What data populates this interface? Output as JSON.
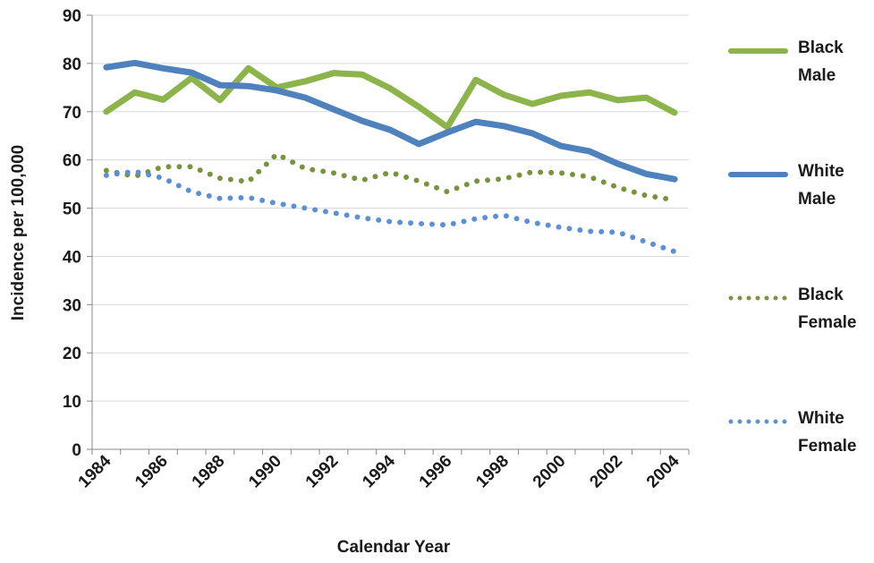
{
  "chart_data": {
    "type": "line",
    "x_label": "Calendar Year",
    "y_label": "Incidence per 100,000",
    "categories": [
      "1984",
      null,
      "1986",
      null,
      "1988",
      null,
      "1990",
      null,
      "1992",
      null,
      "1994",
      null,
      "1996",
      null,
      "1998",
      null,
      "2000",
      null,
      "2002",
      null,
      "2004"
    ],
    "series": [
      {
        "name": "Black Male",
        "color": "#8cb44a",
        "style": "solid",
        "values": [
          70,
          74,
          72.5,
          77,
          72.4,
          79,
          75,
          76.3,
          78,
          77.7,
          74.8,
          71,
          66.8,
          76.6,
          73.5,
          71.6,
          73.3,
          74,
          72.4,
          72.9,
          69.8
        ]
      },
      {
        "name": "White Male",
        "color": "#4f81bd",
        "style": "solid",
        "values": [
          79.2,
          80.1,
          79,
          78.1,
          75.5,
          75.3,
          74.4,
          72.9,
          70.5,
          68.1,
          66.2,
          63.3,
          65.7,
          67.9,
          67,
          65.5,
          62.9,
          61.8,
          59.2,
          57.1,
          56
        ]
      },
      {
        "name": "Black Female",
        "color": "#77933c",
        "style": "dotted",
        "values": [
          57.8,
          56.6,
          58.6,
          58.6,
          56.2,
          55.5,
          61.2,
          58.2,
          57.3,
          55.8,
          57.4,
          55.6,
          53.4,
          55.6,
          56.1,
          57.5,
          57.3,
          56.5,
          54.3,
          52.6,
          51.7
        ]
      },
      {
        "name": "White Female",
        "color": "#5b8fd6",
        "style": "dotted",
        "values": [
          56.8,
          57.6,
          56.2,
          53.4,
          52,
          52.2,
          51,
          50,
          49,
          48,
          47.2,
          46.8,
          46.5,
          47.8,
          48.5,
          47,
          46,
          45.2,
          45,
          43,
          41
        ]
      }
    ],
    "ylim": [
      0,
      90
    ],
    "yticks": [
      0,
      10,
      20,
      30,
      40,
      50,
      60,
      70,
      80,
      90
    ],
    "grid": true,
    "legend": "right"
  }
}
